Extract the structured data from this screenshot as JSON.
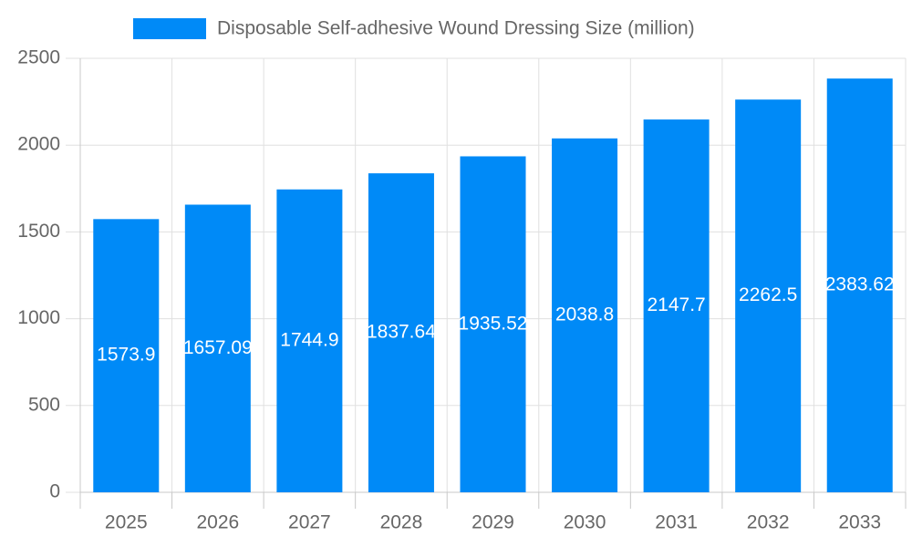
{
  "chart_data": {
    "type": "bar",
    "categories": [
      "2025",
      "2026",
      "2027",
      "2028",
      "2029",
      "2030",
      "2031",
      "2032",
      "2033"
    ],
    "series": [
      {
        "name": "Disposable Self-adhesive Wound Dressing Size (million)",
        "color": "#008af7",
        "values": [
          1573.9,
          1657.09,
          1744.9,
          1837.64,
          1935.52,
          2038.8,
          2147.7,
          2262.5,
          2383.62
        ]
      }
    ],
    "ylim": [
      0,
      2500
    ],
    "yticks": [
      0,
      500,
      1000,
      1500,
      2000,
      2500
    ],
    "grid": true,
    "legend": "top"
  }
}
